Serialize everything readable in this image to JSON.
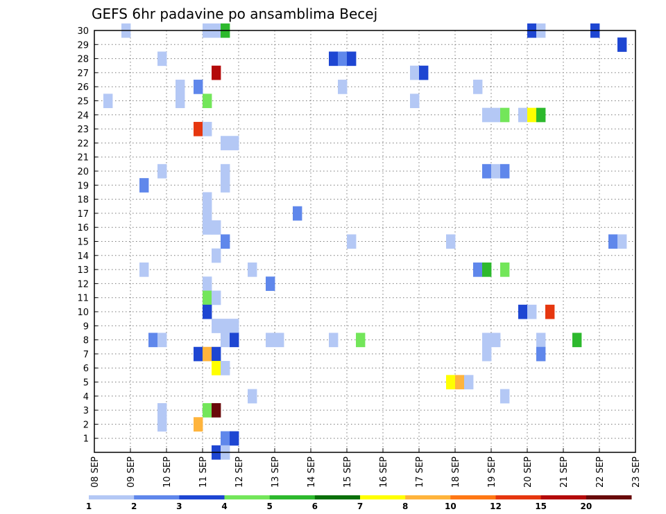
{
  "chart_data": {
    "type": "heatmap",
    "title": "GEFS 6hr padavine po ansamblima Becej",
    "x_tick_labels": [
      "08 SEP",
      "09 SEP",
      "10 SEP",
      "11 SEP",
      "12 SEP",
      "13 SEP",
      "14 SEP",
      "15 SEP",
      "16 SEP",
      "17 SEP",
      "18 SEP",
      "19 SEP",
      "20 SEP",
      "21 SEP",
      "22 SEP",
      "23 SEP"
    ],
    "y_tick_labels": [
      "1",
      "2",
      "3",
      "4",
      "5",
      "6",
      "7",
      "8",
      "9",
      "10",
      "11",
      "12",
      "13",
      "14",
      "15",
      "16",
      "17",
      "18",
      "19",
      "20",
      "21",
      "22",
      "23",
      "24",
      "25",
      "26",
      "27",
      "28",
      "29",
      "30"
    ],
    "xlim_days": [
      8,
      23
    ],
    "ylim": [
      0,
      30
    ],
    "time_step_hours": 6,
    "grid": true,
    "colorbar": {
      "position": "bottom",
      "labels": [
        "1",
        "2",
        "3",
        "4",
        "5",
        "6",
        "7",
        "8",
        "10",
        "12",
        "15",
        "20"
      ],
      "colors": [
        "#b4c8f5",
        "#5f87eb",
        "#1e46d2",
        "#73e65a",
        "#2db92d",
        "#0a700a",
        "#ffff00",
        "#ffb43c",
        "#ff7814",
        "#e6370f",
        "#b40a0a",
        "#690a0a"
      ]
    },
    "cells": [
      [
        30,
        8.75,
        1
      ],
      [
        30,
        11,
        1
      ],
      [
        30,
        11.25,
        1
      ],
      [
        30,
        11.5,
        5
      ],
      [
        30,
        20,
        3
      ],
      [
        30,
        20.25,
        1
      ],
      [
        30,
        21.75,
        3
      ],
      [
        29,
        22.5,
        3
      ],
      [
        28,
        9.75,
        1
      ],
      [
        28,
        14.5,
        3
      ],
      [
        28,
        14.75,
        2
      ],
      [
        28,
        15,
        3
      ],
      [
        27,
        11.25,
        11
      ],
      [
        27,
        16.75,
        1
      ],
      [
        27,
        17,
        3
      ],
      [
        26,
        10.25,
        1
      ],
      [
        26,
        10.75,
        2
      ],
      [
        26,
        14.75,
        1
      ],
      [
        26,
        18.5,
        1
      ],
      [
        25,
        8.25,
        1
      ],
      [
        25,
        10.25,
        1
      ],
      [
        25,
        11,
        4
      ],
      [
        25,
        16.75,
        1
      ],
      [
        24,
        18.75,
        1
      ],
      [
        24,
        19,
        1
      ],
      [
        24,
        19.25,
        4
      ],
      [
        24,
        19.75,
        1
      ],
      [
        24,
        20,
        7
      ],
      [
        24,
        20.25,
        5
      ],
      [
        23,
        10.75,
        10
      ],
      [
        23,
        11,
        1
      ],
      [
        22,
        11.5,
        1
      ],
      [
        22,
        11.75,
        1
      ],
      [
        20,
        9.75,
        1
      ],
      [
        20,
        11.5,
        1
      ],
      [
        20,
        18.75,
        2
      ],
      [
        20,
        19,
        1
      ],
      [
        20,
        19.25,
        2
      ],
      [
        19,
        9.25,
        2
      ],
      [
        19,
        11.5,
        1
      ],
      [
        18,
        11,
        1
      ],
      [
        17,
        11,
        1
      ],
      [
        17,
        13.5,
        2
      ],
      [
        16,
        11,
        1
      ],
      [
        16,
        11.25,
        1
      ],
      [
        15,
        11.5,
        2
      ],
      [
        15,
        15,
        1
      ],
      [
        15,
        17.75,
        1
      ],
      [
        15,
        22.25,
        2
      ],
      [
        15,
        22.5,
        1
      ],
      [
        14,
        11.25,
        1
      ],
      [
        13,
        9.25,
        1
      ],
      [
        13,
        12.25,
        1
      ],
      [
        13,
        18.5,
        2
      ],
      [
        13,
        18.75,
        5
      ],
      [
        13,
        19.25,
        4
      ],
      [
        12,
        11,
        1
      ],
      [
        12,
        12.75,
        2
      ],
      [
        11,
        11,
        4
      ],
      [
        11,
        11.25,
        1
      ],
      [
        10,
        11,
        3
      ],
      [
        10,
        19.75,
        3
      ],
      [
        10,
        20,
        1
      ],
      [
        10,
        20.5,
        10
      ],
      [
        9,
        11.25,
        1
      ],
      [
        9,
        11.5,
        1
      ],
      [
        9,
        11.75,
        1
      ],
      [
        8,
        9.5,
        2
      ],
      [
        8,
        9.75,
        1
      ],
      [
        8,
        11.5,
        1
      ],
      [
        8,
        11.75,
        3
      ],
      [
        8,
        12.75,
        1
      ],
      [
        8,
        13,
        1
      ],
      [
        8,
        14.5,
        1
      ],
      [
        8,
        15.25,
        4
      ],
      [
        8,
        18.75,
        1
      ],
      [
        8,
        19,
        1
      ],
      [
        8,
        20.25,
        1
      ],
      [
        8,
        21.25,
        5
      ],
      [
        7,
        10.75,
        3
      ],
      [
        7,
        11,
        8
      ],
      [
        7,
        11.25,
        3
      ],
      [
        7,
        18.75,
        1
      ],
      [
        7,
        20.25,
        2
      ],
      [
        6,
        11.25,
        7
      ],
      [
        6,
        11.5,
        1
      ],
      [
        5,
        17.75,
        7
      ],
      [
        5,
        18,
        8
      ],
      [
        5,
        18.25,
        1
      ],
      [
        4,
        12.25,
        1
      ],
      [
        4,
        19.25,
        1
      ],
      [
        3,
        9.75,
        1
      ],
      [
        3,
        11,
        4
      ],
      [
        3,
        11.25,
        12
      ],
      [
        2,
        9.75,
        1
      ],
      [
        2,
        10.75,
        8
      ],
      [
        1,
        11.5,
        2
      ],
      [
        1,
        11.75,
        3
      ],
      [
        0,
        11.25,
        3
      ],
      [
        0,
        11.5,
        1
      ]
    ]
  }
}
